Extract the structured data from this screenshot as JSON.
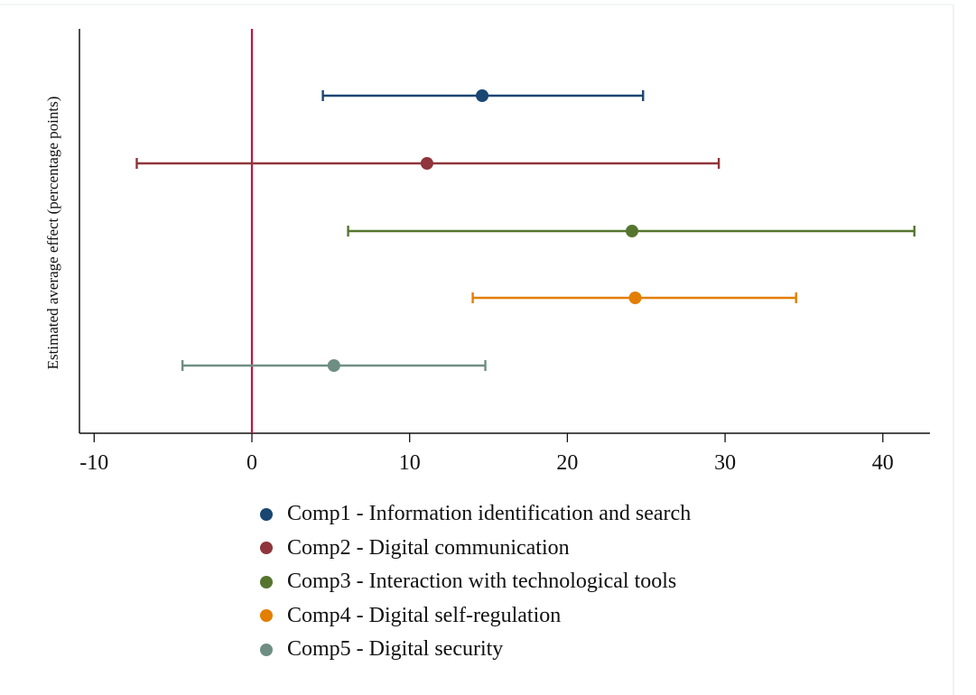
{
  "chart_data": {
    "type": "scatter",
    "subtype": "coefficient-plot-with-confidence-intervals",
    "title": "",
    "xlabel": "",
    "ylabel": "Estimated average effect (percentage points)",
    "xlim": [
      -11,
      43
    ],
    "xticks": [
      -10,
      0,
      10,
      20,
      30,
      40
    ],
    "xtick_labels": [
      "-10",
      "0",
      "10",
      "20",
      "30",
      "40"
    ],
    "reference_line": {
      "x": 0,
      "color": "#c8103e"
    },
    "grid": false,
    "legend_position": "bottom",
    "series": [
      {
        "name": "Comp1 - Information identification and search",
        "estimate": 14.6,
        "ci_low": 4.5,
        "ci_high": 24.8,
        "color": "#1a4672"
      },
      {
        "name": "Comp2 - Digital communication",
        "estimate": 11.1,
        "ci_low": -7.3,
        "ci_high": 29.6,
        "color": "#90353b"
      },
      {
        "name": "Comp3 - Interaction with technological tools",
        "estimate": 24.1,
        "ci_low": 6.1,
        "ci_high": 42.0,
        "color": "#55752f"
      },
      {
        "name": "Comp4 - Digital self-regulation",
        "estimate": 24.3,
        "ci_low": 14.0,
        "ci_high": 34.5,
        "color": "#e37e00"
      },
      {
        "name": "Comp5 - Digital security",
        "estimate": 5.2,
        "ci_low": -4.4,
        "ci_high": 14.8,
        "color": "#6e8e84"
      }
    ]
  },
  "axis": {
    "ylabel": "Estimated average effect (percentage points)",
    "ticks": [
      "-10",
      "0",
      "10",
      "20",
      "30",
      "40"
    ]
  },
  "legend": {
    "items": [
      {
        "label": "Comp1 - Information identification and search",
        "color": "#1a4672"
      },
      {
        "label": "Comp2 - Digital communication",
        "color": "#90353b"
      },
      {
        "label": "Comp3 - Interaction with technological tools",
        "color": "#55752f"
      },
      {
        "label": "Comp4 - Digital self-regulation",
        "color": "#e37e00"
      },
      {
        "label": "Comp5 - Digital security",
        "color": "#6e8e84"
      }
    ]
  }
}
